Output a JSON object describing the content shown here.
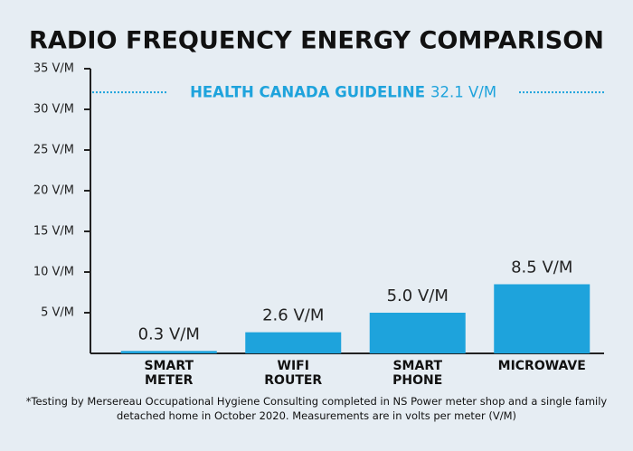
{
  "chart_data": {
    "type": "bar",
    "title": "RADIO FREQUENCY ENERGY COMPARISON",
    "categories": [
      "SMART\nMETER",
      "WIFI\nROUTER",
      "SMART\nPHONE",
      "MICROWAVE"
    ],
    "values": [
      0.3,
      2.6,
      5.0,
      8.5
    ],
    "value_labels": [
      "0.3 V/M",
      "2.6 V/M",
      "5.0 V/M",
      "8.5 V/M"
    ],
    "color": "#1ea3dc",
    "ylim": [
      0,
      35
    ],
    "yticks": [
      {
        "value": 5,
        "label": "5 V/M"
      },
      {
        "value": 10,
        "label": "10 V/M"
      },
      {
        "value": 15,
        "label": "15 V/M"
      },
      {
        "value": 20,
        "label": "20 V/M"
      },
      {
        "value": 25,
        "label": "25 V/M"
      },
      {
        "value": 30,
        "label": "30 V/M"
      },
      {
        "value": 35,
        "label": "35 V/M"
      }
    ],
    "reference_line": {
      "label": "HEALTH CANADA GUIDELINE",
      "value": 32.1,
      "value_label": "32.1 V/M"
    },
    "footnote": "*Testing by Mersereau Occupational Hygiene Consulting completed in NS Power meter shop and a single family detached home in October 2020. Measurements are in volts per meter (V/M)"
  }
}
